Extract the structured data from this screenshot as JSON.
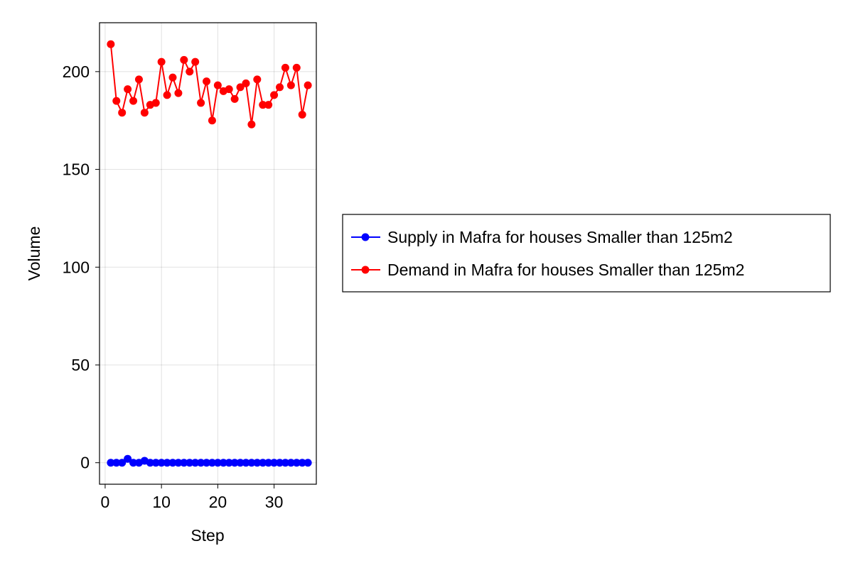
{
  "chart_data": {
    "type": "line",
    "title": "",
    "xlabel": "Step",
    "ylabel": "Volume",
    "xlim": [
      -1,
      37.5
    ],
    "ylim": [
      -11,
      225
    ],
    "xticks": [
      0,
      10,
      20,
      30
    ],
    "yticks": [
      0,
      50,
      100,
      150,
      200
    ],
    "grid": true,
    "legend_position": "right",
    "x": [
      1,
      2,
      3,
      4,
      5,
      6,
      7,
      8,
      9,
      10,
      11,
      12,
      13,
      14,
      15,
      16,
      17,
      18,
      19,
      20,
      21,
      22,
      23,
      24,
      25,
      26,
      27,
      28,
      29,
      30,
      31,
      32,
      33,
      34,
      35,
      36
    ],
    "series": [
      {
        "name": "Supply in Mafra for houses Smaller than 125m2",
        "color": "#0000ff",
        "values": [
          0,
          0,
          0,
          2,
          0,
          0,
          1,
          0,
          0,
          0,
          0,
          0,
          0,
          0,
          0,
          0,
          0,
          0,
          0,
          0,
          0,
          0,
          0,
          0,
          0,
          0,
          0,
          0,
          0,
          0,
          0,
          0,
          0,
          0,
          0,
          0
        ]
      },
      {
        "name": "Demand in Mafra for houses Smaller than 125m2",
        "color": "#ff0000",
        "values": [
          214,
          185,
          179,
          191,
          185,
          196,
          179,
          183,
          184,
          205,
          188,
          197,
          189,
          206,
          200,
          205,
          184,
          195,
          175,
          193,
          190,
          191,
          186,
          192,
          194,
          173,
          196,
          183,
          183,
          188,
          192,
          202,
          193,
          202,
          178,
          193
        ]
      }
    ]
  }
}
